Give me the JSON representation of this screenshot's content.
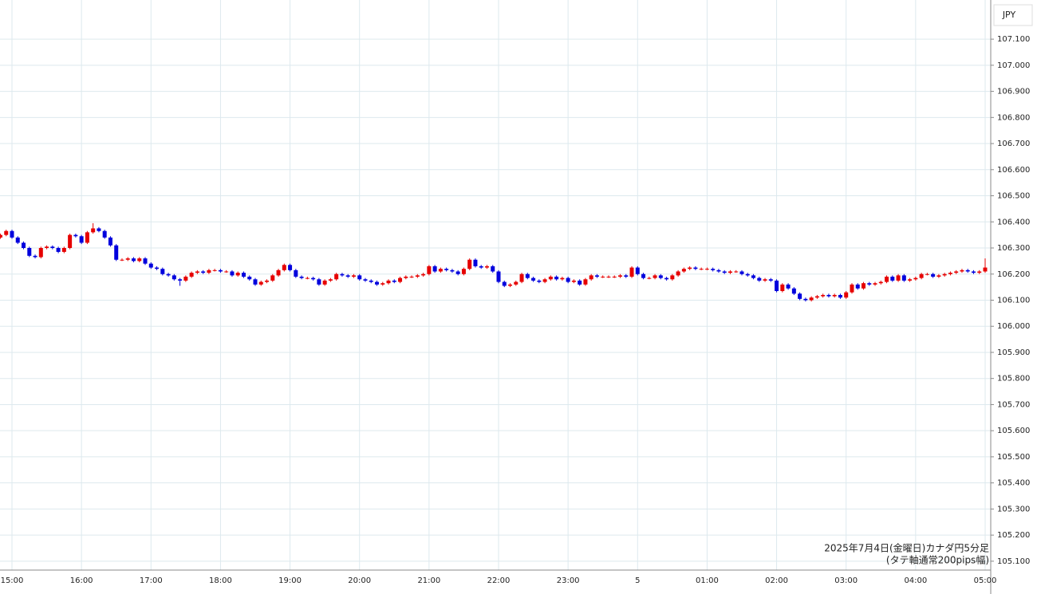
{
  "chart_data": {
    "type": "candlestick",
    "currency": "JPY",
    "annotation": [
      "2025年7月4日(金曜日)カナダ円5分足",
      "(タテ軸通常200pips幅)"
    ],
    "up_color": "#e60000",
    "down_color": "#0000dd",
    "grid": true,
    "ylim": [
      105.066,
      107.25
    ],
    "yticks": [
      {
        "value": 105.1,
        "label": "105.100"
      },
      {
        "value": 105.2,
        "label": "105.200"
      },
      {
        "value": 105.3,
        "label": "105.300"
      },
      {
        "value": 105.4,
        "label": "105.400"
      },
      {
        "value": 105.5,
        "label": "105.500"
      },
      {
        "value": 105.6,
        "label": "105.600"
      },
      {
        "value": 105.7,
        "label": "105.700"
      },
      {
        "value": 105.8,
        "label": "105.800"
      },
      {
        "value": 105.9,
        "label": "105.900"
      },
      {
        "value": 106.0,
        "label": "106.000"
      },
      {
        "value": 106.1,
        "label": "106.100"
      },
      {
        "value": 106.2,
        "label": "106.200"
      },
      {
        "value": 106.3,
        "label": "106.300"
      },
      {
        "value": 106.4,
        "label": "106.400"
      },
      {
        "value": 106.5,
        "label": "106.500"
      },
      {
        "value": 106.6,
        "label": "106.600"
      },
      {
        "value": 106.7,
        "label": "106.700"
      },
      {
        "value": 106.8,
        "label": "106.800"
      },
      {
        "value": 106.9,
        "label": "106.900"
      },
      {
        "value": 107.0,
        "label": "107.000"
      },
      {
        "value": 107.1,
        "label": "107.100"
      }
    ],
    "categories": [
      null,
      null,
      "15:00",
      null,
      null,
      null,
      null,
      null,
      null,
      null,
      null,
      null,
      null,
      null,
      "16:00",
      null,
      null,
      null,
      null,
      null,
      null,
      null,
      null,
      null,
      null,
      null,
      "17:00",
      null,
      null,
      null,
      null,
      null,
      null,
      null,
      null,
      null,
      null,
      null,
      "18:00",
      null,
      null,
      null,
      null,
      null,
      null,
      null,
      null,
      null,
      null,
      null,
      "19:00",
      null,
      null,
      null,
      null,
      null,
      null,
      null,
      null,
      null,
      null,
      null,
      "20:00",
      null,
      null,
      null,
      null,
      null,
      null,
      null,
      null,
      null,
      null,
      null,
      "21:00",
      null,
      null,
      null,
      null,
      null,
      null,
      null,
      null,
      null,
      null,
      null,
      "22:00",
      null,
      null,
      null,
      null,
      null,
      null,
      null,
      null,
      null,
      null,
      null,
      "23:00",
      null,
      null,
      null,
      null,
      null,
      null,
      null,
      null,
      null,
      null,
      null,
      "5",
      null,
      null,
      null,
      null,
      null,
      null,
      null,
      null,
      null,
      null,
      null,
      "01:00",
      null,
      null,
      null,
      null,
      null,
      null,
      null,
      null,
      null,
      null,
      null,
      "02:00",
      null,
      null,
      null,
      null,
      null,
      null,
      null,
      null,
      null,
      null,
      null,
      "03:00",
      null,
      null,
      null,
      null,
      null,
      null,
      null,
      null,
      null,
      null,
      null,
      "04:00",
      null,
      null,
      null,
      null,
      null,
      null,
      null,
      null,
      null,
      null,
      null,
      "05:00"
    ],
    "open": [
      106.34,
      106.35,
      106.365,
      106.34,
      106.32,
      106.3,
      106.27,
      106.265,
      106.3,
      106.305,
      106.3,
      106.285,
      106.3,
      106.35,
      106.345,
      106.32,
      106.36,
      106.375,
      106.365,
      106.34,
      106.31,
      106.255,
      106.255,
      106.26,
      106.25,
      106.26,
      106.24,
      106.225,
      106.22,
      106.2,
      106.195,
      106.18,
      106.175,
      106.19,
      106.205,
      106.21,
      106.205,
      106.215,
      106.215,
      106.21,
      106.21,
      106.195,
      106.205,
      106.19,
      106.18,
      106.16,
      106.17,
      106.175,
      106.195,
      106.215,
      106.235,
      106.215,
      106.19,
      106.185,
      106.185,
      106.18,
      106.16,
      106.175,
      106.18,
      106.2,
      106.195,
      106.19,
      106.195,
      106.18,
      106.175,
      106.17,
      106.16,
      106.165,
      106.175,
      106.17,
      106.185,
      106.19,
      106.19,
      106.195,
      106.2,
      106.23,
      106.21,
      106.22,
      106.215,
      106.21,
      106.2,
      106.22,
      106.255,
      106.23,
      106.225,
      106.23,
      106.21,
      106.17,
      106.155,
      106.16,
      106.17,
      106.2,
      106.185,
      106.175,
      106.17,
      106.18,
      106.19,
      106.18,
      106.185,
      106.17,
      106.175,
      106.16,
      106.18,
      106.195,
      106.19,
      106.19,
      106.19,
      106.19,
      106.195,
      106.19,
      106.225,
      106.2,
      106.185,
      106.185,
      106.195,
      106.185,
      106.18,
      106.195,
      106.21,
      106.22,
      106.225,
      106.22,
      106.22,
      106.22,
      106.215,
      106.21,
      106.205,
      106.21,
      106.21,
      106.2,
      106.195,
      106.185,
      106.175,
      106.18,
      106.175,
      106.135,
      106.16,
      106.145,
      106.125,
      106.105,
      106.1,
      106.11,
      106.115,
      106.12,
      106.115,
      106.12,
      106.11,
      106.13,
      106.16,
      106.145,
      106.165,
      106.16,
      106.165,
      106.17,
      106.19,
      106.175,
      106.195,
      106.175,
      106.18,
      106.185,
      106.2,
      106.2,
      106.19,
      106.195,
      106.2,
      106.205,
      106.21,
      106.215,
      106.21,
      106.205,
      106.21
    ],
    "high": [
      106.355,
      106.37,
      106.37,
      106.345,
      106.325,
      106.305,
      106.275,
      106.305,
      106.31,
      106.31,
      106.305,
      106.305,
      106.355,
      106.355,
      106.35,
      106.365,
      106.395,
      106.38,
      106.37,
      106.345,
      106.315,
      106.26,
      106.265,
      106.265,
      106.265,
      106.265,
      106.245,
      106.23,
      106.225,
      106.205,
      106.2,
      106.185,
      106.195,
      106.21,
      106.215,
      106.215,
      106.22,
      106.22,
      106.22,
      106.215,
      106.215,
      106.21,
      106.21,
      106.195,
      106.185,
      106.175,
      106.18,
      106.2,
      106.22,
      106.24,
      106.24,
      106.22,
      106.195,
      106.19,
      106.19,
      106.185,
      106.18,
      106.185,
      106.205,
      106.205,
      106.2,
      106.2,
      106.2,
      106.185,
      106.18,
      106.175,
      106.17,
      106.18,
      106.18,
      106.19,
      106.195,
      106.195,
      106.2,
      106.205,
      106.235,
      106.235,
      106.225,
      106.225,
      106.22,
      106.215,
      106.225,
      106.26,
      106.26,
      106.235,
      106.235,
      106.235,
      106.215,
      106.175,
      106.165,
      106.175,
      106.205,
      106.205,
      106.19,
      106.18,
      106.185,
      106.195,
      106.195,
      106.19,
      106.19,
      106.18,
      106.18,
      106.185,
      106.2,
      106.2,
      106.195,
      106.195,
      106.195,
      106.2,
      106.2,
      106.23,
      106.23,
      106.205,
      106.19,
      106.2,
      106.2,
      106.19,
      106.2,
      106.215,
      106.225,
      106.23,
      106.23,
      106.225,
      106.225,
      106.225,
      106.22,
      106.215,
      106.215,
      106.215,
      106.215,
      106.205,
      106.2,
      106.19,
      106.185,
      106.185,
      106.18,
      106.165,
      106.165,
      106.15,
      106.13,
      106.11,
      106.115,
      106.12,
      106.125,
      106.125,
      106.125,
      106.125,
      106.135,
      106.165,
      106.165,
      106.17,
      106.17,
      106.17,
      106.175,
      106.195,
      106.195,
      106.2,
      106.2,
      106.185,
      106.19,
      106.205,
      106.205,
      106.205,
      106.2,
      106.205,
      106.21,
      106.215,
      106.22,
      106.22,
      106.215,
      106.215,
      106.26
    ],
    "low": [
      106.335,
      106.345,
      106.335,
      106.315,
      106.295,
      106.265,
      106.26,
      106.26,
      106.295,
      106.295,
      106.28,
      106.28,
      106.295,
      106.34,
      106.315,
      106.315,
      106.355,
      106.36,
      106.335,
      106.305,
      106.25,
      106.25,
      106.25,
      106.245,
      106.245,
      106.235,
      106.22,
      106.215,
      106.195,
      106.19,
      106.175,
      106.155,
      106.17,
      106.185,
      106.2,
      106.2,
      106.2,
      106.21,
      106.205,
      106.205,
      106.19,
      106.19,
      106.185,
      106.175,
      106.155,
      106.155,
      106.165,
      106.17,
      106.19,
      106.21,
      106.21,
      106.185,
      106.18,
      106.18,
      106.175,
      106.155,
      106.155,
      106.17,
      106.175,
      106.19,
      106.185,
      106.185,
      106.175,
      106.17,
      106.165,
      106.155,
      106.155,
      106.16,
      106.165,
      106.165,
      106.18,
      106.185,
      106.185,
      106.19,
      106.195,
      106.205,
      106.205,
      106.21,
      106.205,
      106.195,
      106.195,
      106.215,
      106.225,
      106.22,
      106.22,
      106.205,
      106.165,
      106.15,
      106.15,
      106.155,
      106.165,
      106.18,
      106.17,
      106.165,
      106.165,
      106.175,
      106.175,
      106.175,
      106.165,
      106.165,
      106.155,
      106.155,
      106.175,
      106.185,
      106.185,
      106.185,
      106.185,
      106.185,
      106.185,
      106.185,
      106.195,
      106.18,
      106.18,
      106.18,
      106.18,
      106.175,
      106.175,
      106.19,
      106.205,
      106.215,
      106.215,
      106.215,
      106.215,
      106.21,
      106.205,
      106.2,
      106.2,
      106.205,
      106.195,
      106.19,
      106.18,
      106.17,
      106.17,
      106.17,
      106.13,
      106.13,
      106.14,
      106.12,
      106.1,
      106.095,
      106.095,
      106.105,
      106.11,
      106.11,
      106.11,
      106.105,
      106.105,
      106.125,
      106.14,
      106.14,
      106.155,
      106.155,
      106.16,
      106.165,
      106.17,
      106.17,
      106.17,
      106.17,
      106.175,
      106.18,
      106.195,
      106.185,
      106.185,
      106.19,
      106.195,
      106.2,
      106.205,
      106.205,
      106.2,
      106.2,
      106.205
    ],
    "close": [
      106.35,
      106.365,
      106.34,
      106.32,
      106.3,
      106.27,
      106.265,
      106.3,
      106.305,
      106.3,
      106.285,
      106.3,
      106.35,
      106.345,
      106.32,
      106.36,
      106.375,
      106.365,
      106.34,
      106.31,
      106.255,
      106.255,
      106.26,
      106.25,
      106.26,
      106.24,
      106.225,
      106.22,
      106.2,
      106.195,
      106.18,
      106.175,
      106.19,
      106.205,
      106.21,
      106.205,
      106.215,
      106.215,
      106.21,
      106.21,
      106.195,
      106.205,
      106.19,
      106.18,
      106.16,
      106.17,
      106.175,
      106.195,
      106.215,
      106.235,
      106.215,
      106.19,
      106.185,
      106.185,
      106.18,
      106.16,
      106.175,
      106.18,
      106.2,
      106.195,
      106.19,
      106.195,
      106.18,
      106.175,
      106.17,
      106.16,
      106.165,
      106.175,
      106.17,
      106.185,
      106.19,
      106.19,
      106.195,
      106.2,
      106.23,
      106.21,
      106.22,
      106.215,
      106.21,
      106.2,
      106.22,
      106.255,
      106.23,
      106.225,
      106.23,
      106.21,
      106.17,
      106.155,
      106.16,
      106.17,
      106.2,
      106.185,
      106.175,
      106.17,
      106.18,
      106.19,
      106.18,
      106.185,
      106.17,
      106.175,
      106.16,
      106.18,
      106.195,
      106.19,
      106.19,
      106.19,
      106.19,
      106.195,
      106.19,
      106.225,
      106.2,
      106.185,
      106.185,
      106.195,
      106.185,
      106.18,
      106.195,
      106.21,
      106.22,
      106.225,
      106.22,
      106.22,
      106.22,
      106.215,
      106.21,
      106.205,
      106.21,
      106.21,
      106.2,
      106.195,
      106.185,
      106.175,
      106.18,
      106.175,
      106.135,
      106.16,
      106.145,
      106.125,
      106.105,
      106.1,
      106.11,
      106.115,
      106.12,
      106.115,
      106.12,
      106.11,
      106.13,
      106.16,
      106.145,
      106.165,
      106.16,
      106.165,
      106.17,
      106.19,
      106.175,
      106.195,
      106.175,
      106.18,
      106.185,
      106.2,
      106.2,
      106.19,
      106.195,
      106.2,
      106.205,
      106.21,
      106.215,
      106.21,
      106.205,
      106.21,
      106.225
    ]
  }
}
